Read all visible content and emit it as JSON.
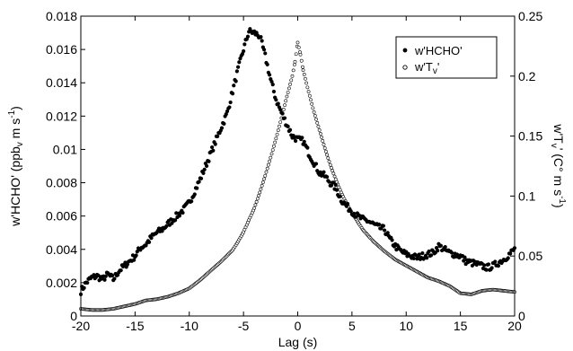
{
  "chart_data": {
    "type": "scatter",
    "xlabel": "Lag (s)",
    "ylabel_left": "w'HCHO' (ppb",
    "ylabel_left_sub": "v",
    "ylabel_left_units": " m s",
    "ylabel_left_sup": "-1",
    "ylabel_left_close": ")",
    "ylabel_right": "w'T",
    "ylabel_right_sub": "v",
    "ylabel_right_units": "' (C° m s",
    "ylabel_right_sup": "-1",
    "ylabel_right_close": ")",
    "xlim": [
      -20,
      20
    ],
    "ylim_left": [
      0,
      0.018
    ],
    "ylim_right": [
      0,
      0.25
    ],
    "x_ticks": [
      "-20",
      "-15",
      "-10",
      "-5",
      "0",
      "5",
      "10",
      "15",
      "20"
    ],
    "y_left_ticks": [
      "0",
      "0.002",
      "0.004",
      "0.006",
      "0.008",
      "0.01",
      "0.012",
      "0.014",
      "0.016",
      "0.018"
    ],
    "y_right_ticks": [
      "0",
      "0.05",
      "0.1",
      "0.15",
      "0.2",
      "0.25"
    ],
    "grid": false,
    "legend_position": "top-right",
    "series": [
      {
        "name": "w'HCHO'",
        "axis": "left",
        "marker": "filled-circle",
        "color": "#000000",
        "x": [
          -20,
          -19.5,
          -19,
          -18.5,
          -18,
          -17.5,
          -17,
          -16.5,
          -16,
          -15.5,
          -15,
          -14.5,
          -14,
          -13.5,
          -13,
          -12.5,
          -12,
          -11.5,
          -11,
          -10.5,
          -10,
          -9.5,
          -9,
          -8.5,
          -8,
          -7.5,
          -7,
          -6.5,
          -6,
          -5.5,
          -5,
          -4.5,
          -4,
          -3.5,
          -3,
          -2.5,
          -2,
          -1.5,
          -1,
          -0.5,
          0,
          0.5,
          1,
          1.5,
          2,
          2.5,
          3,
          3.5,
          4,
          4.5,
          5,
          5.5,
          6,
          6.5,
          7,
          7.5,
          8,
          8.5,
          9,
          9.5,
          10,
          10.5,
          11,
          11.5,
          12,
          12.5,
          13,
          13.5,
          14,
          14.5,
          15,
          15.5,
          16,
          16.5,
          17,
          17.5,
          18,
          18.5,
          19,
          19.5,
          20
        ],
        "y": [
          0.0015,
          0.002,
          0.0023,
          0.0024,
          0.0022,
          0.0025,
          0.0022,
          0.0027,
          0.003,
          0.0033,
          0.0036,
          0.0041,
          0.0043,
          0.0047,
          0.005,
          0.0052,
          0.0055,
          0.0058,
          0.0061,
          0.0064,
          0.0068,
          0.0075,
          0.0082,
          0.009,
          0.0098,
          0.0106,
          0.0114,
          0.0122,
          0.0135,
          0.0148,
          0.016,
          0.0171,
          0.017,
          0.0168,
          0.0156,
          0.0142,
          0.013,
          0.0122,
          0.0115,
          0.0108,
          0.0106,
          0.0105,
          0.0098,
          0.0092,
          0.0086,
          0.0084,
          0.008,
          0.0077,
          0.007,
          0.0066,
          0.0063,
          0.006,
          0.0058,
          0.0057,
          0.0055,
          0.0053,
          0.0052,
          0.0046,
          0.0042,
          0.0039,
          0.0037,
          0.0036,
          0.0035,
          0.0036,
          0.0037,
          0.0038,
          0.0042,
          0.004,
          0.0038,
          0.0037,
          0.0036,
          0.0033,
          0.0032,
          0.0031,
          0.003,
          0.0029,
          0.003,
          0.0032,
          0.0034,
          0.0037,
          0.004
        ]
      },
      {
        "name": "w'T",
        "name_sub": "v",
        "name_suffix": "'",
        "axis": "right",
        "marker": "open-circle",
        "color": "#000000",
        "x": [
          -20,
          -19,
          -18,
          -17,
          -16,
          -15,
          -14,
          -13,
          -12,
          -11,
          -10,
          -9,
          -8,
          -7,
          -6,
          -5.5,
          -5,
          -4.5,
          -4,
          -3.5,
          -3,
          -2.5,
          -2,
          -1.5,
          -1,
          -0.5,
          -0.25,
          0,
          0.25,
          0.5,
          1,
          1.5,
          2,
          2.5,
          3,
          3.5,
          4,
          4.5,
          5,
          5.5,
          6,
          7,
          8,
          9,
          10,
          11,
          12,
          13,
          14,
          15,
          16,
          17,
          18,
          19,
          20
        ],
        "y": [
          0.006,
          0.005,
          0.005,
          0.006,
          0.008,
          0.01,
          0.013,
          0.014,
          0.016,
          0.019,
          0.023,
          0.03,
          0.038,
          0.046,
          0.055,
          0.062,
          0.07,
          0.08,
          0.09,
          0.103,
          0.117,
          0.132,
          0.148,
          0.165,
          0.183,
          0.2,
          0.212,
          0.228,
          0.218,
          0.205,
          0.187,
          0.17,
          0.155,
          0.14,
          0.126,
          0.114,
          0.103,
          0.094,
          0.086,
          0.079,
          0.072,
          0.062,
          0.054,
          0.047,
          0.042,
          0.037,
          0.032,
          0.029,
          0.025,
          0.019,
          0.018,
          0.021,
          0.022,
          0.021,
          0.02
        ]
      }
    ]
  }
}
